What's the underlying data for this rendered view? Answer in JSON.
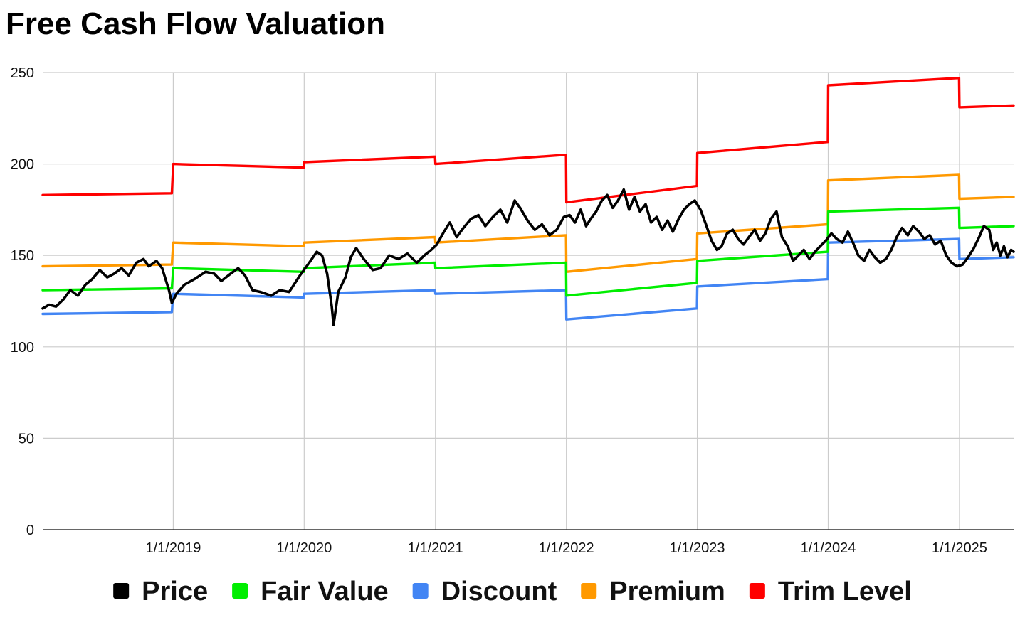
{
  "chart_data": {
    "type": "line",
    "title": "Free Cash Flow Valuation",
    "xlabel": "",
    "ylabel": "",
    "x_range": [
      "2018-01-02",
      "2025-06-01"
    ],
    "ylim": [
      0,
      250
    ],
    "yticks": [
      0,
      50,
      100,
      150,
      200,
      250
    ],
    "xticks": [
      "2019-01-01",
      "2020-01-01",
      "2021-01-01",
      "2022-01-01",
      "2023-01-01",
      "2024-01-01",
      "2025-01-01"
    ],
    "xtick_labels": [
      "1/1/2019",
      "1/1/2020",
      "1/1/2021",
      "1/1/2022",
      "1/1/2023",
      "1/1/2024",
      "1/1/2025"
    ],
    "grid": true,
    "legend_position": "bottom",
    "series": [
      {
        "name": "Price",
        "color": "#000000",
        "points": [
          [
            "2018-01-02",
            121
          ],
          [
            "2018-01-20",
            123
          ],
          [
            "2018-02-08",
            122
          ],
          [
            "2018-03-01",
            126
          ],
          [
            "2018-03-20",
            131
          ],
          [
            "2018-04-10",
            128
          ],
          [
            "2018-05-01",
            134
          ],
          [
            "2018-05-20",
            137
          ],
          [
            "2018-06-10",
            142
          ],
          [
            "2018-07-01",
            138
          ],
          [
            "2018-07-20",
            140
          ],
          [
            "2018-08-10",
            143
          ],
          [
            "2018-08-30",
            139
          ],
          [
            "2018-09-20",
            146
          ],
          [
            "2018-10-10",
            148
          ],
          [
            "2018-10-25",
            144
          ],
          [
            "2018-11-15",
            147
          ],
          [
            "2018-12-01",
            143
          ],
          [
            "2018-12-20",
            131
          ],
          [
            "2018-12-28",
            124
          ],
          [
            "2019-01-10",
            129
          ],
          [
            "2019-02-01",
            134
          ],
          [
            "2019-03-01",
            137
          ],
          [
            "2019-04-01",
            141
          ],
          [
            "2019-04-25",
            140
          ],
          [
            "2019-05-15",
            136
          ],
          [
            "2019-06-10",
            140
          ],
          [
            "2019-07-01",
            143
          ],
          [
            "2019-07-20",
            139
          ],
          [
            "2019-08-10",
            131
          ],
          [
            "2019-09-01",
            130
          ],
          [
            "2019-10-01",
            128
          ],
          [
            "2019-10-25",
            131
          ],
          [
            "2019-11-20",
            130
          ],
          [
            "2019-12-20",
            139
          ],
          [
            "2020-01-15",
            146
          ],
          [
            "2020-02-05",
            152
          ],
          [
            "2020-02-20",
            150
          ],
          [
            "2020-03-05",
            140
          ],
          [
            "2020-03-18",
            122
          ],
          [
            "2020-03-23",
            112
          ],
          [
            "2020-04-05",
            130
          ],
          [
            "2020-04-25",
            138
          ],
          [
            "2020-05-10",
            149
          ],
          [
            "2020-05-25",
            154
          ],
          [
            "2020-06-15",
            148
          ],
          [
            "2020-07-10",
            142
          ],
          [
            "2020-08-01",
            143
          ],
          [
            "2020-08-25",
            150
          ],
          [
            "2020-09-20",
            148
          ],
          [
            "2020-10-15",
            151
          ],
          [
            "2020-11-10",
            146
          ],
          [
            "2020-12-01",
            150
          ],
          [
            "2020-12-20",
            153
          ],
          [
            "2021-01-05",
            156
          ],
          [
            "2021-01-25",
            163
          ],
          [
            "2021-02-10",
            168
          ],
          [
            "2021-03-01",
            160
          ],
          [
            "2021-03-20",
            165
          ],
          [
            "2021-04-10",
            170
          ],
          [
            "2021-05-01",
            172
          ],
          [
            "2021-05-20",
            166
          ],
          [
            "2021-06-10",
            171
          ],
          [
            "2021-07-01",
            175
          ],
          [
            "2021-07-20",
            168
          ],
          [
            "2021-08-10",
            180
          ],
          [
            "2021-08-25",
            176
          ],
          [
            "2021-09-15",
            169
          ],
          [
            "2021-10-05",
            164
          ],
          [
            "2021-10-25",
            167
          ],
          [
            "2021-11-15",
            161
          ],
          [
            "2021-12-05",
            164
          ],
          [
            "2021-12-25",
            171
          ],
          [
            "2022-01-10",
            172
          ],
          [
            "2022-01-25",
            168
          ],
          [
            "2022-02-10",
            175
          ],
          [
            "2022-02-25",
            166
          ],
          [
            "2022-03-10",
            170
          ],
          [
            "2022-03-25",
            174
          ],
          [
            "2022-04-10",
            180
          ],
          [
            "2022-04-25",
            183
          ],
          [
            "2022-05-10",
            176
          ],
          [
            "2022-05-25",
            180
          ],
          [
            "2022-06-10",
            186
          ],
          [
            "2022-06-25",
            175
          ],
          [
            "2022-07-10",
            182
          ],
          [
            "2022-07-25",
            174
          ],
          [
            "2022-08-10",
            178
          ],
          [
            "2022-08-25",
            168
          ],
          [
            "2022-09-10",
            171
          ],
          [
            "2022-09-25",
            164
          ],
          [
            "2022-10-10",
            169
          ],
          [
            "2022-10-25",
            163
          ],
          [
            "2022-11-10",
            170
          ],
          [
            "2022-11-25",
            175
          ],
          [
            "2022-12-10",
            178
          ],
          [
            "2022-12-25",
            180
          ],
          [
            "2023-01-10",
            175
          ],
          [
            "2023-01-25",
            167
          ],
          [
            "2023-02-10",
            158
          ],
          [
            "2023-02-25",
            153
          ],
          [
            "2023-03-10",
            155
          ],
          [
            "2023-03-25",
            162
          ],
          [
            "2023-04-10",
            164
          ],
          [
            "2023-04-25",
            159
          ],
          [
            "2023-05-10",
            156
          ],
          [
            "2023-05-25",
            160
          ],
          [
            "2023-06-10",
            164
          ],
          [
            "2023-06-25",
            158
          ],
          [
            "2023-07-10",
            162
          ],
          [
            "2023-07-25",
            170
          ],
          [
            "2023-08-10",
            174
          ],
          [
            "2023-08-25",
            160
          ],
          [
            "2023-09-10",
            155
          ],
          [
            "2023-09-25",
            147
          ],
          [
            "2023-10-10",
            150
          ],
          [
            "2023-10-25",
            153
          ],
          [
            "2023-11-10",
            148
          ],
          [
            "2023-11-25",
            152
          ],
          [
            "2023-12-10",
            155
          ],
          [
            "2023-12-25",
            158
          ],
          [
            "2024-01-10",
            162
          ],
          [
            "2024-01-25",
            159
          ],
          [
            "2024-02-10",
            157
          ],
          [
            "2024-02-25",
            163
          ],
          [
            "2024-03-10",
            157
          ],
          [
            "2024-03-25",
            150
          ],
          [
            "2024-04-10",
            147
          ],
          [
            "2024-04-25",
            153
          ],
          [
            "2024-05-10",
            149
          ],
          [
            "2024-05-25",
            146
          ],
          [
            "2024-06-10",
            148
          ],
          [
            "2024-06-25",
            153
          ],
          [
            "2024-07-10",
            160
          ],
          [
            "2024-07-25",
            165
          ],
          [
            "2024-08-10",
            161
          ],
          [
            "2024-08-25",
            166
          ],
          [
            "2024-09-10",
            163
          ],
          [
            "2024-09-25",
            159
          ],
          [
            "2024-10-10",
            161
          ],
          [
            "2024-10-25",
            156
          ],
          [
            "2024-11-10",
            158
          ],
          [
            "2024-11-25",
            150
          ],
          [
            "2024-12-10",
            146
          ],
          [
            "2024-12-25",
            144
          ],
          [
            "2025-01-10",
            145
          ],
          [
            "2025-01-25",
            149
          ],
          [
            "2025-02-10",
            154
          ],
          [
            "2025-02-25",
            160
          ],
          [
            "2025-03-10",
            166
          ],
          [
            "2025-03-25",
            164
          ],
          [
            "2025-04-05",
            153
          ],
          [
            "2025-04-15",
            157
          ],
          [
            "2025-04-25",
            150
          ],
          [
            "2025-05-05",
            155
          ],
          [
            "2025-05-15",
            149
          ],
          [
            "2025-05-25",
            153
          ],
          [
            "2025-06-01",
            152
          ]
        ]
      },
      {
        "name": "Fair Value",
        "color": "#00ee00",
        "points": [
          [
            "2018-01-02",
            131
          ],
          [
            "2018-12-28",
            132
          ],
          [
            "2019-01-01",
            143
          ],
          [
            "2019-12-31",
            141
          ],
          [
            "2020-01-01",
            143
          ],
          [
            "2020-12-31",
            146
          ],
          [
            "2021-01-01",
            143
          ],
          [
            "2021-12-31",
            146
          ],
          [
            "2022-01-01",
            128
          ],
          [
            "2022-12-31",
            135
          ],
          [
            "2023-01-01",
            147
          ],
          [
            "2023-12-31",
            152
          ],
          [
            "2024-01-01",
            174
          ],
          [
            "2024-12-31",
            176
          ],
          [
            "2025-01-01",
            165
          ],
          [
            "2025-06-01",
            166
          ]
        ]
      },
      {
        "name": "Discount",
        "color": "#4285f4",
        "points": [
          [
            "2018-01-02",
            118
          ],
          [
            "2018-12-28",
            119
          ],
          [
            "2019-01-01",
            129
          ],
          [
            "2019-12-31",
            127
          ],
          [
            "2020-01-01",
            129
          ],
          [
            "2020-12-31",
            131
          ],
          [
            "2021-01-01",
            129
          ],
          [
            "2021-12-31",
            131
          ],
          [
            "2022-01-01",
            115
          ],
          [
            "2022-12-31",
            121
          ],
          [
            "2023-01-01",
            133
          ],
          [
            "2023-12-31",
            137
          ],
          [
            "2024-01-01",
            157
          ],
          [
            "2024-12-31",
            159
          ],
          [
            "2025-01-01",
            148
          ],
          [
            "2025-06-01",
            149
          ]
        ]
      },
      {
        "name": "Premium",
        "color": "#ff9900",
        "points": [
          [
            "2018-01-02",
            144
          ],
          [
            "2018-12-28",
            145
          ],
          [
            "2019-01-01",
            157
          ],
          [
            "2019-12-31",
            155
          ],
          [
            "2020-01-01",
            157
          ],
          [
            "2020-12-31",
            160
          ],
          [
            "2021-01-01",
            157
          ],
          [
            "2021-12-31",
            161
          ],
          [
            "2022-01-01",
            141
          ],
          [
            "2022-12-31",
            148
          ],
          [
            "2023-01-01",
            162
          ],
          [
            "2023-12-31",
            167
          ],
          [
            "2024-01-01",
            191
          ],
          [
            "2024-12-31",
            194
          ],
          [
            "2025-01-01",
            181
          ],
          [
            "2025-06-01",
            182
          ]
        ]
      },
      {
        "name": "Trim Level",
        "color": "#ff0000",
        "points": [
          [
            "2018-01-02",
            183
          ],
          [
            "2018-12-28",
            184
          ],
          [
            "2019-01-01",
            200
          ],
          [
            "2019-12-31",
            198
          ],
          [
            "2020-01-01",
            201
          ],
          [
            "2020-12-31",
            204
          ],
          [
            "2021-01-01",
            200
          ],
          [
            "2021-12-31",
            205
          ],
          [
            "2022-01-01",
            179
          ],
          [
            "2022-12-31",
            188
          ],
          [
            "2023-01-01",
            206
          ],
          [
            "2023-12-31",
            212
          ],
          [
            "2024-01-01",
            243
          ],
          [
            "2024-12-31",
            247
          ],
          [
            "2025-01-01",
            231
          ],
          [
            "2025-06-01",
            232
          ]
        ]
      }
    ]
  }
}
